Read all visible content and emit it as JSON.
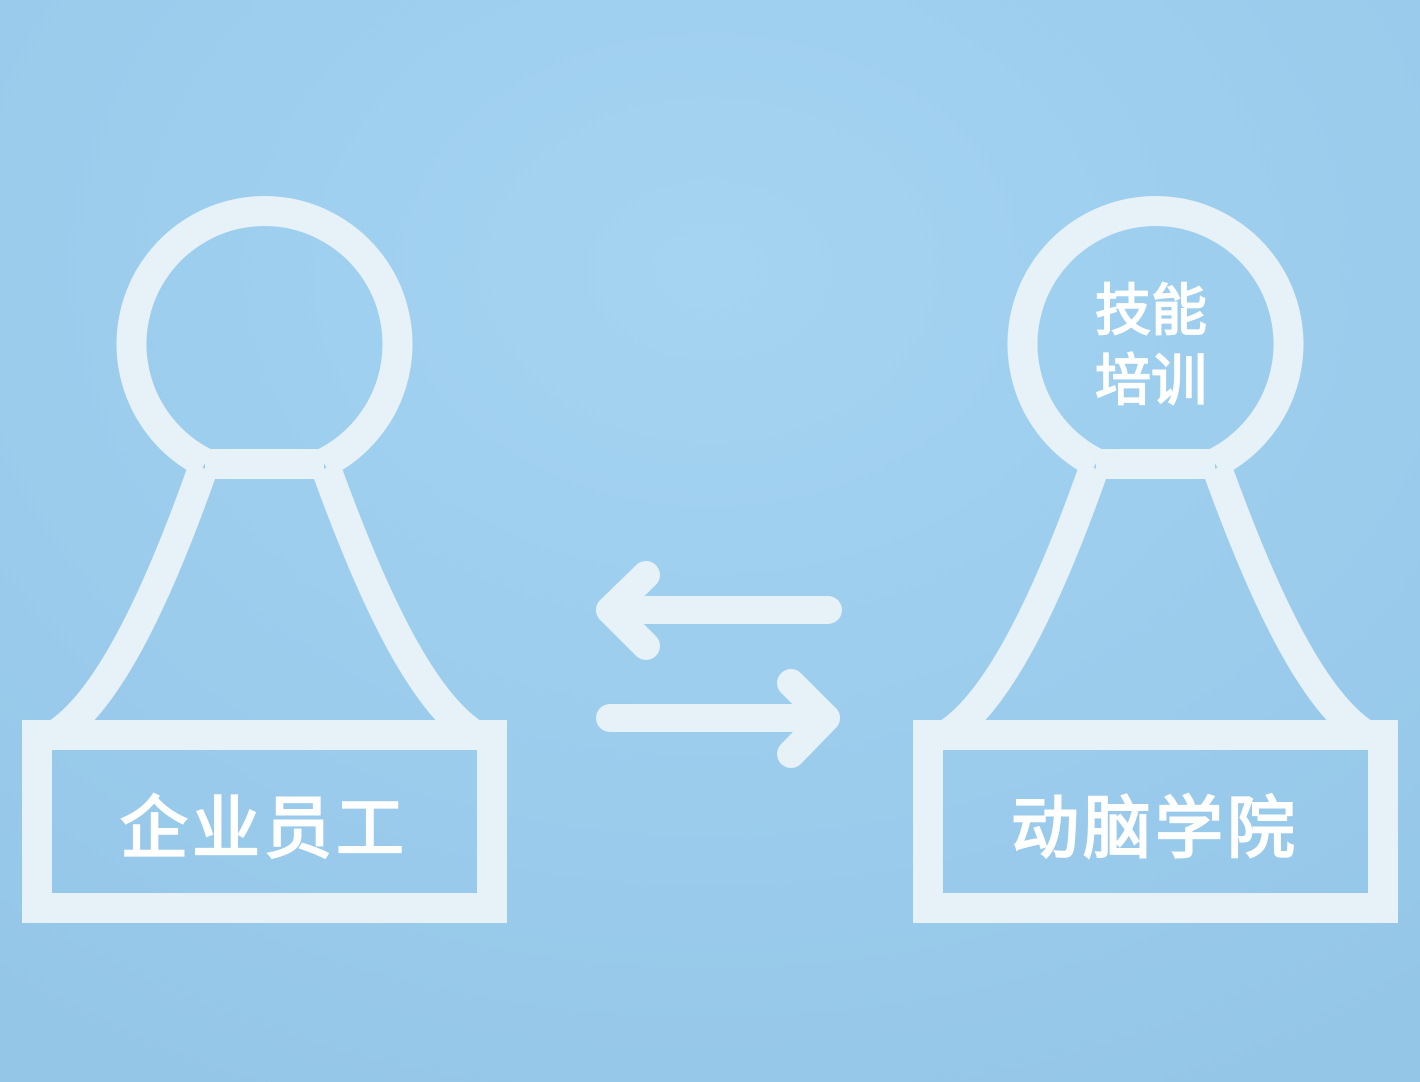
{
  "colors": {
    "background": "#9ccbec",
    "stroke": "#e6f1f8",
    "text": "#ffffff"
  },
  "left_figure": {
    "label": "企业员工"
  },
  "right_figure": {
    "label": "动脑学院",
    "head_text_line1": "技能",
    "head_text_line2": "培训"
  },
  "arrows": {
    "top_direction": "left",
    "bottom_direction": "right",
    "icon": "exchange-arrows-icon"
  }
}
